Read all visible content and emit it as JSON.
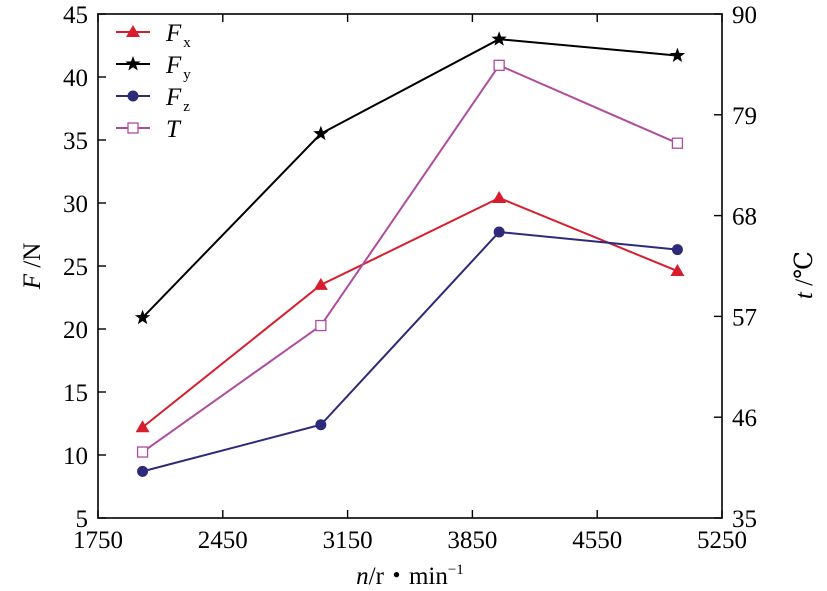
{
  "chart_data": {
    "type": "line",
    "x_label": {
      "var": "n",
      "rest": "/r・min",
      "sup": "−1"
    },
    "y_left_label": {
      "var": "F",
      "rest": " /N"
    },
    "y_right_label": {
      "var": "t",
      "rest": " /℃"
    },
    "x_range": [
      1750,
      5250
    ],
    "x_ticks": [
      "1750",
      "2450",
      "3150",
      "3850",
      "4550",
      "5250"
    ],
    "y_left_range": [
      5,
      45
    ],
    "y_left_ticks": [
      "5",
      "10",
      "15",
      "20",
      "25",
      "30",
      "35",
      "40",
      "45"
    ],
    "y_right_range": [
      35,
      90
    ],
    "y_right_ticks": [
      "35",
      "46",
      "57",
      "68",
      "79",
      "90"
    ],
    "x": [
      2000,
      3000,
      4000,
      5000
    ],
    "series": [
      {
        "name": "Fx",
        "name_main": "F",
        "name_sub": "x",
        "axis": "left",
        "color": "#d81e2e",
        "marker": "triangle",
        "values": [
          12.2,
          23.5,
          30.4,
          24.6
        ]
      },
      {
        "name": "Fy",
        "name_main": "F",
        "name_sub": "y",
        "axis": "left",
        "color": "#000000",
        "marker": "star",
        "values": [
          20.9,
          35.5,
          43.0,
          41.7
        ]
      },
      {
        "name": "Fz",
        "name_main": "F",
        "name_sub": "z",
        "axis": "left",
        "color": "#2e2a7a",
        "marker": "circle",
        "values": [
          8.7,
          12.4,
          27.7,
          26.3
        ]
      },
      {
        "name": "T",
        "name_main": "T",
        "name_sub": "",
        "axis": "right",
        "color": "#b04c9c",
        "line_color": "#b04c9c",
        "marker": "open-square",
        "values": [
          42.2,
          56.0,
          84.4,
          75.9
        ]
      }
    ],
    "legend_position": "top-left",
    "grid": false
  }
}
